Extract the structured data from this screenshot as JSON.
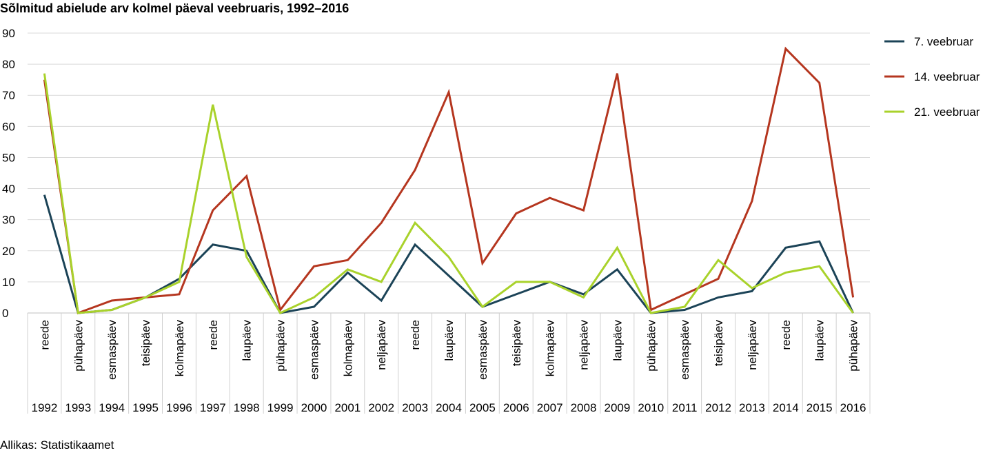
{
  "source": "Allikas: Statistikaamet",
  "chart_data": {
    "type": "line",
    "title": "Sõlmitud abielude arv kolmel päeval veebruaris, 1992–2016",
    "xlabel": "",
    "ylabel": "",
    "ylim": [
      0,
      90
    ],
    "yticks": [
      0,
      10,
      20,
      30,
      40,
      50,
      60,
      70,
      80,
      90
    ],
    "grid": true,
    "legend_position": "right",
    "categories": [
      "1992",
      "1993",
      "1994",
      "1995",
      "1996",
      "1997",
      "1998",
      "1999",
      "2000",
      "2001",
      "2002",
      "2003",
      "2004",
      "2005",
      "2006",
      "2007",
      "2008",
      "2009",
      "2010",
      "2011",
      "2012",
      "2013",
      "2014",
      "2015",
      "2016"
    ],
    "weekdays": [
      "reede",
      "pühapäev",
      "esmaspäev",
      "teisipäev",
      "kolmapäev",
      "reede",
      "laupäev",
      "pühapäev",
      "esmaspäev",
      "kolmapäev",
      "neljapäev",
      "reede",
      "laupäev",
      "esmaspäev",
      "teisipäev",
      "kolmapäev",
      "neljapäev",
      "laupäev",
      "pühapäev",
      "esmaspäev",
      "teisipäev",
      "neljapäev",
      "reede",
      "laupäev",
      "pühapäev"
    ],
    "series": [
      {
        "name": "7. veebruar",
        "color": "#1b4357",
        "values": [
          38,
          0,
          1,
          5,
          11,
          22,
          20,
          0,
          2,
          13,
          4,
          22,
          12,
          2,
          6,
          10,
          6,
          14,
          0,
          1,
          5,
          7,
          21,
          23,
          0
        ]
      },
      {
        "name": "14. veebruar",
        "color": "#b5361f",
        "values": [
          75,
          0,
          4,
          5,
          6,
          33,
          44,
          1,
          15,
          17,
          29,
          46,
          71,
          16,
          32,
          37,
          33,
          77,
          1,
          6,
          11,
          36,
          85,
          74,
          5
        ]
      },
      {
        "name": "21. veebruar",
        "color": "#a9d22b",
        "values": [
          77,
          0,
          1,
          5,
          10,
          67,
          18,
          0,
          5,
          14,
          10,
          29,
          18,
          2,
          10,
          10,
          5,
          21,
          0,
          2,
          17,
          8,
          13,
          15,
          0
        ]
      }
    ]
  }
}
